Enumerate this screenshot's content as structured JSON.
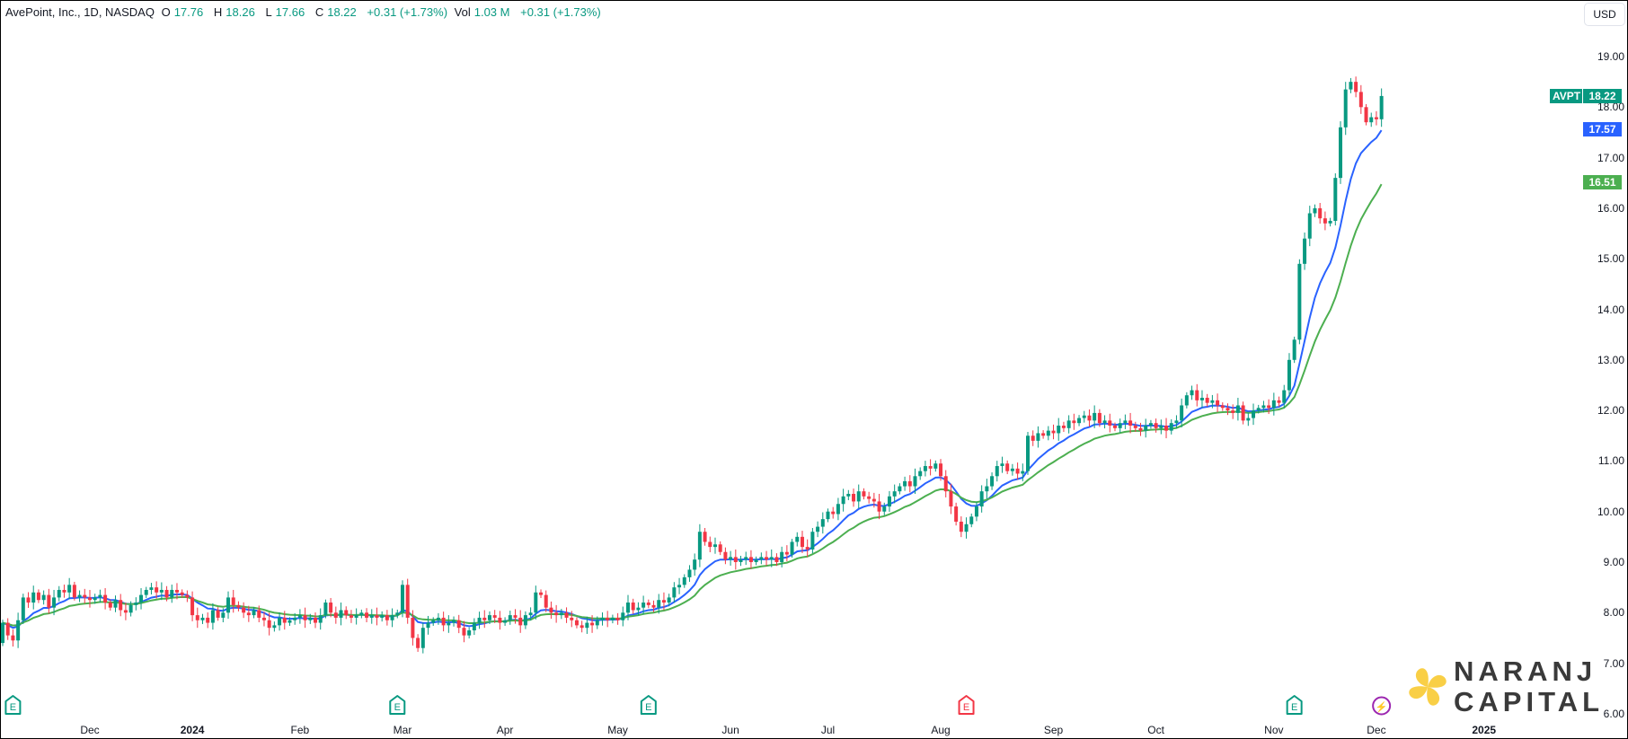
{
  "legend": {
    "title": "AvePoint, Inc., 1D, NASDAQ",
    "open_label": "O",
    "open": "17.76",
    "high_label": "H",
    "high": "18.26",
    "low_label": "L",
    "low": "17.66",
    "close_label": "C",
    "close": "18.22",
    "change": "+0.31 (+1.73%)",
    "vol_label": "Vol",
    "vol": "1.03 M",
    "vol_change": "+0.31 (+1.73%)"
  },
  "currency_button": "USD",
  "logo": {
    "line1": "NARANJ",
    "line2": "CAPITAL"
  },
  "colors": {
    "up": "#089981",
    "down": "#f23645",
    "ema_fast": "#2962ff",
    "ema_slow": "#4caf50",
    "logo_yellow": "#f9cf46"
  },
  "chart_data": {
    "type": "candlestick",
    "symbol": "AVPT",
    "ylim": [
      6,
      19.6
    ],
    "y_ticks": [
      "6.00",
      "7.00",
      "8.00",
      "9.00",
      "10.00",
      "11.00",
      "12.00",
      "13.00",
      "14.00",
      "15.00",
      "16.00",
      "17.00",
      "18.00",
      "19.00"
    ],
    "x_ticks": [
      {
        "label": "Dec",
        "index": 17
      },
      {
        "label": "2024",
        "index": 37,
        "year": true
      },
      {
        "label": "Feb",
        "index": 58
      },
      {
        "label": "Mar",
        "index": 78
      },
      {
        "label": "Apr",
        "index": 98
      },
      {
        "label": "May",
        "index": 120
      },
      {
        "label": "Jun",
        "index": 142
      },
      {
        "label": "Jul",
        "index": 161
      },
      {
        "label": "Aug",
        "index": 183
      },
      {
        "label": "Sep",
        "index": 205
      },
      {
        "label": "Oct",
        "index": 225
      },
      {
        "label": "Nov",
        "index": 248
      },
      {
        "label": "Dec",
        "index": 268
      },
      {
        "label": "2025",
        "index": 289,
        "year": true
      }
    ],
    "first_open": 7.4,
    "close": [
      7.8,
      7.55,
      7.45,
      7.85,
      8.3,
      8.2,
      8.4,
      8.25,
      8.35,
      8.1,
      8.3,
      8.45,
      8.4,
      8.55,
      8.3,
      8.35,
      8.3,
      8.25,
      8.3,
      8.35,
      8.2,
      8.1,
      8.25,
      8.05,
      8.0,
      8.15,
      8.2,
      8.35,
      8.45,
      8.5,
      8.4,
      8.45,
      8.3,
      8.45,
      8.4,
      8.35,
      8.3,
      7.95,
      7.85,
      7.9,
      7.8,
      8.05,
      7.9,
      8.0,
      8.3,
      8.15,
      8.1,
      8.0,
      7.95,
      8.05,
      7.9,
      7.85,
      7.7,
      7.75,
      7.9,
      7.8,
      7.85,
      7.9,
      7.95,
      7.85,
      7.9,
      7.8,
      7.95,
      8.2,
      8.0,
      7.9,
      8.05,
      7.95,
      7.9,
      7.95,
      8.0,
      7.9,
      7.95,
      7.9,
      7.95,
      7.85,
      7.95,
      8.0,
      8.55,
      7.9,
      7.5,
      7.3,
      7.7,
      7.8,
      7.85,
      7.9,
      7.75,
      7.8,
      7.85,
      7.7,
      7.55,
      7.65,
      7.8,
      7.9,
      7.85,
      7.95,
      7.9,
      7.8,
      7.85,
      7.95,
      7.9,
      7.75,
      7.95,
      8.0,
      8.4,
      8.35,
      8.1,
      8.0,
      7.95,
      8.0,
      7.9,
      7.85,
      7.75,
      7.7,
      7.8,
      7.75,
      7.85,
      7.9,
      7.85,
      7.9,
      7.85,
      8.0,
      8.2,
      8.05,
      8.1,
      8.2,
      8.15,
      8.1,
      8.25,
      8.2,
      8.3,
      8.5,
      8.55,
      8.7,
      8.85,
      9.05,
      9.6,
      9.4,
      9.3,
      9.35,
      9.2,
      9.05,
      9.1,
      9.0,
      9.05,
      9.1,
      9.0,
      9.05,
      9.1,
      9.05,
      9.1,
      9.0,
      9.2,
      9.15,
      9.4,
      9.5,
      9.3,
      9.25,
      9.6,
      9.7,
      9.85,
      10.0,
      9.95,
      10.15,
      10.3,
      10.35,
      10.2,
      10.4,
      10.3,
      10.25,
      10.2,
      10.0,
      10.1,
      10.3,
      10.4,
      10.5,
      10.6,
      10.5,
      10.7,
      10.8,
      10.9,
      10.85,
      10.95,
      10.7,
      10.4,
      10.1,
      9.8,
      9.6,
      9.75,
      9.9,
      10.1,
      10.4,
      10.5,
      10.7,
      10.9,
      10.95,
      10.8,
      10.85,
      10.75,
      10.8,
      11.5,
      11.4,
      11.55,
      11.5,
      11.6,
      11.55,
      11.7,
      11.65,
      11.8,
      11.75,
      11.85,
      11.9,
      11.8,
      11.95,
      11.75,
      11.8,
      11.7,
      11.65,
      11.75,
      11.8,
      11.7,
      11.65,
      11.6,
      11.7,
      11.75,
      11.65,
      11.7,
      11.6,
      11.75,
      11.8,
      12.1,
      12.3,
      12.4,
      12.2,
      12.25,
      12.15,
      12.2,
      12.1,
      12.05,
      12.0,
      11.95,
      12.1,
      11.8,
      11.85,
      12.0,
      12.05,
      12.1,
      12.05,
      12.2,
      12.15,
      12.4,
      13.0,
      13.4,
      14.9,
      15.4,
      15.9,
      16.0,
      15.8,
      15.7,
      15.75,
      16.6,
      17.6,
      18.35,
      18.5,
      18.3,
      18.0,
      17.7,
      17.8,
      17.76,
      18.22
    ],
    "last_price": {
      "symbol_label": "AVPT",
      "value": "18.22",
      "price": 18.22
    },
    "moving_averages": [
      {
        "type": "EMA",
        "period": 10,
        "last_label": "17.57",
        "last": 17.57,
        "color": "#2962ff"
      },
      {
        "type": "EMA",
        "period": 20,
        "last_label": "16.51",
        "last": 16.51,
        "color": "#4caf50"
      }
    ],
    "events": [
      {
        "type": "earnings",
        "label": "E",
        "index": 2,
        "color": "#089981"
      },
      {
        "type": "earnings",
        "label": "E",
        "index": 77,
        "color": "#089981"
      },
      {
        "type": "earnings",
        "label": "E",
        "index": 126,
        "color": "#089981"
      },
      {
        "type": "earnings",
        "label": "E",
        "index": 188,
        "color": "#f23645"
      },
      {
        "type": "earnings",
        "label": "E",
        "index": 252,
        "color": "#089981"
      },
      {
        "type": "dividend-split",
        "label": "⚡",
        "index": 269,
        "color": "#9c27b0"
      }
    ]
  }
}
